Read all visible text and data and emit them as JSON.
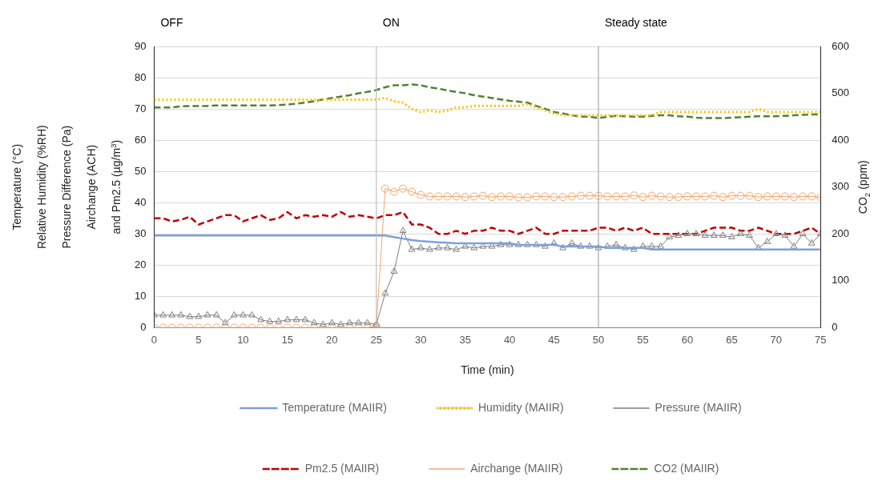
{
  "chart_data": {
    "type": "line",
    "xlabel": "Time (min)",
    "ylabel": "Temperature (°C)\nRelative Humidity (%RH)\nPressure Difference (Pa)\nAirchange (ACH)\nand Pm2.5 (µg/m$^{3}$)",
    "y2label": "CO$_{2}$ (ppm)",
    "x": [
      0,
      1,
      2,
      3,
      4,
      5,
      6,
      7,
      8,
      9,
      10,
      11,
      12,
      13,
      14,
      15,
      16,
      17,
      18,
      19,
      20,
      21,
      22,
      23,
      24,
      25,
      26,
      27,
      28,
      29,
      30,
      31,
      32,
      33,
      34,
      35,
      36,
      37,
      38,
      39,
      40,
      41,
      42,
      43,
      44,
      45,
      46,
      47,
      48,
      49,
      50,
      51,
      52,
      53,
      54,
      55,
      56,
      57,
      58,
      59,
      60,
      61,
      62,
      63,
      64,
      65,
      66,
      67,
      68,
      69,
      70,
      71,
      72,
      73,
      74,
      75
    ],
    "xlim": [
      0,
      75
    ],
    "xticks": [
      0,
      5,
      10,
      15,
      20,
      25,
      30,
      35,
      40,
      45,
      50,
      55,
      60,
      65,
      70,
      75
    ],
    "ylim": [
      0,
      90
    ],
    "yticks": [
      0,
      10,
      20,
      30,
      40,
      50,
      60,
      70,
      80,
      90
    ],
    "y2lim": [
      0,
      600
    ],
    "y2ticks": [
      0,
      100,
      200,
      300,
      400,
      500,
      600
    ],
    "grid": "y",
    "legend": "bottom",
    "annotations": [
      "OFF",
      "ON",
      "Steady state"
    ],
    "ref_lines": [
      {
        "axis": "x",
        "value": 25,
        "color": "#bfbfbf"
      },
      {
        "axis": "x",
        "value": 50,
        "color": "#a6a6a6"
      }
    ],
    "series": [
      {
        "name": "Temperature (MAIIR)",
        "color": "#7f9fdc",
        "marker": "none",
        "line_style": "solid",
        "values": [
          29.5,
          29.5,
          29.5,
          29.5,
          29.5,
          29.5,
          29.5,
          29.5,
          29.5,
          29.5,
          29.5,
          29.5,
          29.5,
          29.5,
          29.5,
          29.5,
          29.5,
          29.5,
          29.5,
          29.5,
          29.5,
          29.5,
          29.5,
          29.5,
          29.5,
          29.5,
          29.5,
          29,
          28.5,
          28,
          27.7,
          27.5,
          27.3,
          27.2,
          27,
          27,
          27,
          27,
          27,
          27,
          27,
          26.5,
          26.5,
          26.5,
          26.5,
          26.5,
          26,
          26,
          26,
          26,
          26,
          25.5,
          25.5,
          25.5,
          25.5,
          25.5,
          25,
          25,
          25,
          25,
          25,
          25,
          25,
          25,
          25,
          25,
          25,
          25,
          25,
          25,
          25,
          25,
          25,
          25,
          25,
          25
        ]
      },
      {
        "name": "Humidity (MAIIR)",
        "color": "#ffc000",
        "marker": "none",
        "line_style": "dotted",
        "values": [
          73,
          73,
          73,
          73,
          73,
          73,
          73,
          73,
          73,
          73,
          73,
          73,
          73,
          73,
          73,
          73,
          73,
          73,
          73,
          73,
          73,
          73,
          73,
          73,
          73,
          73,
          73.5,
          72.5,
          72,
          70,
          69,
          69.5,
          69,
          69.5,
          70.5,
          70.5,
          71,
          71,
          71,
          71,
          71,
          71,
          71.5,
          70.5,
          69.5,
          68.5,
          68,
          68,
          68,
          68,
          68,
          68,
          68,
          68,
          68,
          68,
          68,
          69,
          69,
          69,
          69,
          69,
          69,
          69,
          69,
          69,
          69,
          69,
          70,
          69,
          69,
          69,
          69,
          69,
          69,
          69
        ]
      },
      {
        "name": "Pressure (MAIIR)",
        "color": "#7f7f7f",
        "marker": "triangle",
        "line_style": "solid",
        "values": [
          4,
          4,
          4,
          4,
          3.5,
          3.5,
          4,
          4,
          1.5,
          4,
          4,
          4,
          2.5,
          2,
          2,
          2.5,
          2.5,
          2.5,
          1.5,
          1,
          1.5,
          1,
          1.5,
          1.5,
          1.5,
          1,
          11,
          18,
          31,
          25,
          25.5,
          25,
          25.5,
          25.5,
          25,
          26,
          25.5,
          26,
          26,
          26.5,
          26.5,
          26.5,
          26.5,
          26.5,
          26,
          27,
          25.5,
          27,
          26,
          26,
          25.5,
          26,
          26.5,
          25.5,
          25,
          26,
          26,
          26,
          29,
          29.5,
          30,
          30,
          29.5,
          29.5,
          29.5,
          29,
          30,
          29.5,
          25.5,
          27.5,
          30,
          29.5,
          26,
          30,
          27,
          30
        ]
      },
      {
        "name": "Pm2.5 (MAIIR)",
        "color": "#c00000",
        "marker": "none",
        "line_style": "dashed",
        "values": [
          35,
          35,
          34,
          34.5,
          35.5,
          33,
          34,
          35,
          36,
          36,
          34,
          35,
          36,
          34.5,
          35,
          37,
          35,
          36,
          35.5,
          36,
          35.5,
          37,
          35.5,
          36,
          35.5,
          35,
          36,
          36,
          37,
          33,
          33,
          32,
          30,
          30,
          31,
          30,
          31,
          31,
          32,
          31,
          31,
          30,
          31,
          32,
          30,
          30,
          31,
          31,
          31,
          31,
          32,
          32,
          31,
          32,
          31,
          32,
          30,
          30,
          30,
          30,
          30,
          30,
          31,
          32,
          32,
          32,
          31,
          31,
          32,
          31,
          30,
          30,
          30,
          31,
          32,
          30
        ]
      },
      {
        "name": "Airchange (MAIIR)",
        "color": "#f4a46a",
        "marker": "circle",
        "line_style": "solid",
        "values": [
          0,
          0,
          0,
          0,
          0,
          0,
          0,
          0,
          0,
          0,
          0,
          0,
          0,
          0,
          0,
          0,
          0,
          0,
          0,
          0,
          0,
          0,
          0,
          0,
          0,
          0.5,
          44.5,
          43.5,
          44.5,
          43.5,
          42.5,
          42,
          42,
          42,
          42,
          41.8,
          42,
          42.2,
          41.8,
          42,
          42,
          41.7,
          41.7,
          42,
          42,
          41.8,
          41.8,
          42,
          42.2,
          42.2,
          42.2,
          42,
          42,
          42,
          42.3,
          41.8,
          42.2,
          42,
          41.8,
          41.8,
          42,
          42,
          42,
          42.2,
          41.8,
          42.2,
          42.2,
          42.2,
          41.8,
          42,
          42,
          42,
          41.8,
          42,
          42,
          41.7
        ]
      },
      {
        "name": "CO2 (MAIIR)",
        "color": "#548235",
        "marker": "none",
        "line_style": "dashed",
        "axis": "y2",
        "values": [
          470,
          470,
          470,
          472,
          473,
          473,
          473,
          474,
          474,
          474,
          474,
          474,
          474,
          474,
          475,
          476,
          478,
          480,
          483,
          487,
          490,
          493,
          496,
          500,
          503,
          507,
          513,
          517,
          517,
          519,
          517,
          513,
          510,
          506,
          503,
          500,
          496,
          493,
          490,
          487,
          484,
          482,
          480,
          473,
          467,
          460,
          457,
          453,
          450,
          450,
          447,
          450,
          452,
          451,
          450,
          450,
          452,
          453,
          453,
          451,
          450,
          448,
          447,
          447,
          447,
          448,
          449,
          450,
          451,
          451,
          451,
          452,
          453,
          454,
          455,
          455
        ]
      }
    ]
  }
}
